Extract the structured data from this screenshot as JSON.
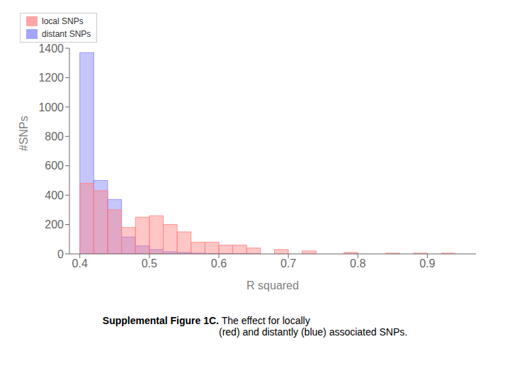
{
  "chart_data": {
    "type": "bar",
    "x": [
      0.4,
      0.42,
      0.44,
      0.46,
      0.48,
      0.5,
      0.52,
      0.54,
      0.56,
      0.58,
      0.6,
      0.62,
      0.64,
      0.68,
      0.72,
      0.78,
      0.84,
      0.88,
      0.92
    ],
    "bin_width": 0.02,
    "series": [
      {
        "name": "local SNPs",
        "color": "#FF8080",
        "values": [
          480,
          430,
          300,
          180,
          250,
          260,
          200,
          150,
          80,
          80,
          60,
          60,
          40,
          30,
          20,
          10,
          5,
          5,
          5
        ]
      },
      {
        "name": "distant SNPs",
        "color": "#8080FF",
        "values": [
          1370,
          500,
          370,
          115,
          55,
          30,
          15,
          10,
          5,
          3,
          2,
          1,
          1,
          0,
          0,
          0,
          0,
          0,
          0
        ]
      }
    ],
    "xlabel": "R squared",
    "ylabel": "#SNPs",
    "xlim": [
      0.385,
      0.97
    ],
    "xticks": [
      0.4,
      0.5,
      0.6,
      0.7,
      0.8,
      0.9
    ],
    "ylim": [
      0,
      1400
    ],
    "yticks": [
      0,
      200,
      400,
      600,
      800,
      1000,
      1200,
      1400
    ],
    "legend": "upper right",
    "grid": false,
    "annotations": [
      "Supplemental Figure 1C.",
      " The effect for locally\n(red) and distantly (blue) associated SNPs."
    ]
  }
}
